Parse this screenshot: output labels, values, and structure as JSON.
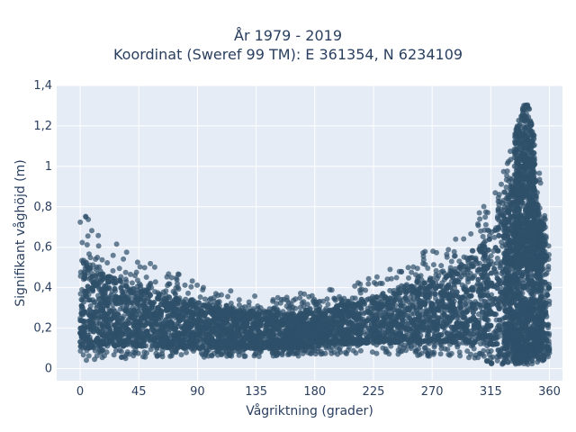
{
  "chart_data": {
    "type": "scatter",
    "title": "År 1979 - 2019",
    "subtitle": "Koordinat (Sweref 99 TM): E 361354, N 6234109",
    "xlabel": "Vågriktning (grader)",
    "ylabel": "Signifikant våghöjd (m)",
    "xlim": [
      -18,
      370
    ],
    "ylim": [
      -0.06,
      1.4
    ],
    "x_ticks": [
      0,
      45,
      90,
      135,
      180,
      225,
      270,
      315,
      360
    ],
    "y_ticks": [
      0,
      0.2,
      0.4,
      0.6,
      0.8,
      1,
      1.2,
      1.4
    ],
    "y_tick_labels": [
      "0",
      "0,2",
      "0,4",
      "0,6",
      "0,8",
      "1",
      "1,2",
      "1,4"
    ],
    "grid": true,
    "marker_color": "#2f5069",
    "plot_bg": "#e5ecf6",
    "series": [
      {
        "x": [
          0,
          10,
          20,
          30,
          45,
          60,
          75,
          90,
          105,
          120,
          135,
          150,
          165,
          180,
          195,
          210,
          225,
          240,
          255,
          270,
          285,
          300,
          315,
          325,
          335,
          340,
          342,
          345,
          350,
          355,
          360
        ],
        "y_min": [
          0.04,
          0.04,
          0.05,
          0.05,
          0.05,
          0.05,
          0.05,
          0.05,
          0.06,
          0.06,
          0.06,
          0.06,
          0.06,
          0.07,
          0.07,
          0.07,
          0.07,
          0.07,
          0.06,
          0.06,
          0.05,
          0.03,
          0.02,
          0.02,
          0.02,
          0.02,
          0.02,
          0.02,
          0.03,
          0.04,
          0.05
        ],
        "y_max": [
          0.8,
          0.7,
          0.66,
          0.62,
          0.55,
          0.5,
          0.47,
          0.44,
          0.4,
          0.38,
          0.37,
          0.36,
          0.37,
          0.38,
          0.4,
          0.42,
          0.46,
          0.5,
          0.55,
          0.6,
          0.64,
          0.72,
          0.85,
          0.99,
          1.2,
          1.3,
          1.33,
          1.28,
          1.1,
          0.85,
          0.6
        ],
        "y_core_low": [
          0.1,
          0.1,
          0.11,
          0.11,
          0.11,
          0.11,
          0.1,
          0.1,
          0.1,
          0.1,
          0.1,
          0.1,
          0.1,
          0.11,
          0.12,
          0.12,
          0.13,
          0.13,
          0.13,
          0.13,
          0.13,
          0.13,
          0.12,
          0.1,
          0.08,
          0.08,
          0.08,
          0.08,
          0.1,
          0.12,
          0.14
        ],
        "y_core_high": [
          0.55,
          0.5,
          0.46,
          0.44,
          0.4,
          0.37,
          0.35,
          0.33,
          0.3,
          0.29,
          0.28,
          0.28,
          0.28,
          0.3,
          0.31,
          0.33,
          0.36,
          0.39,
          0.42,
          0.45,
          0.48,
          0.55,
          0.66,
          0.78,
          0.95,
          1.1,
          1.15,
          1.05,
          0.85,
          0.65,
          0.45
        ]
      }
    ]
  }
}
